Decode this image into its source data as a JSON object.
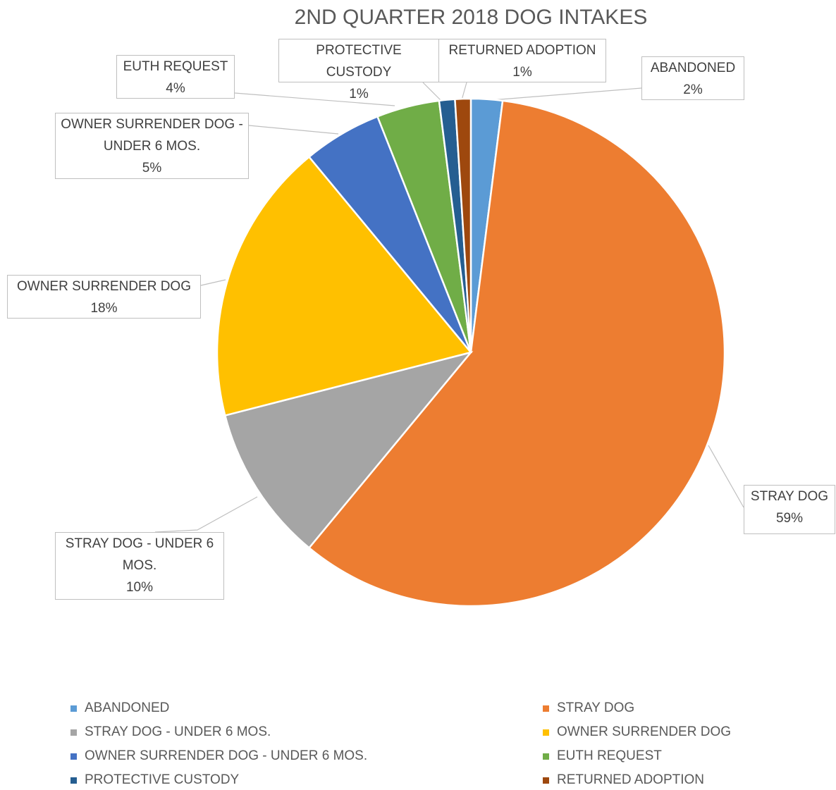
{
  "chart_data": {
    "type": "pie",
    "title": "2ND QUARTER 2018 DOG INTAKES",
    "categories": [
      "ABANDONED",
      "STRAY DOG",
      "STRAY DOG - UNDER 6 MOS.",
      "OWNER SURRENDER DOG",
      "OWNER SURRENDER DOG - UNDER 6 MOS.",
      "EUTH REQUEST",
      "PROTECTIVE CUSTODY",
      "RETURNED ADOPTION"
    ],
    "values": [
      2,
      59,
      10,
      18,
      5,
      4,
      1,
      1
    ],
    "value_labels": [
      "2%",
      "59%",
      "10%",
      "18%",
      "5%",
      "4%",
      "1%",
      "1%"
    ],
    "colors": [
      "#5b9bd5",
      "#ed7d31",
      "#a5a5a5",
      "#ffc000",
      "#4472c4",
      "#70ad47",
      "#255e91",
      "#9e480e"
    ],
    "legend": "bottom"
  }
}
